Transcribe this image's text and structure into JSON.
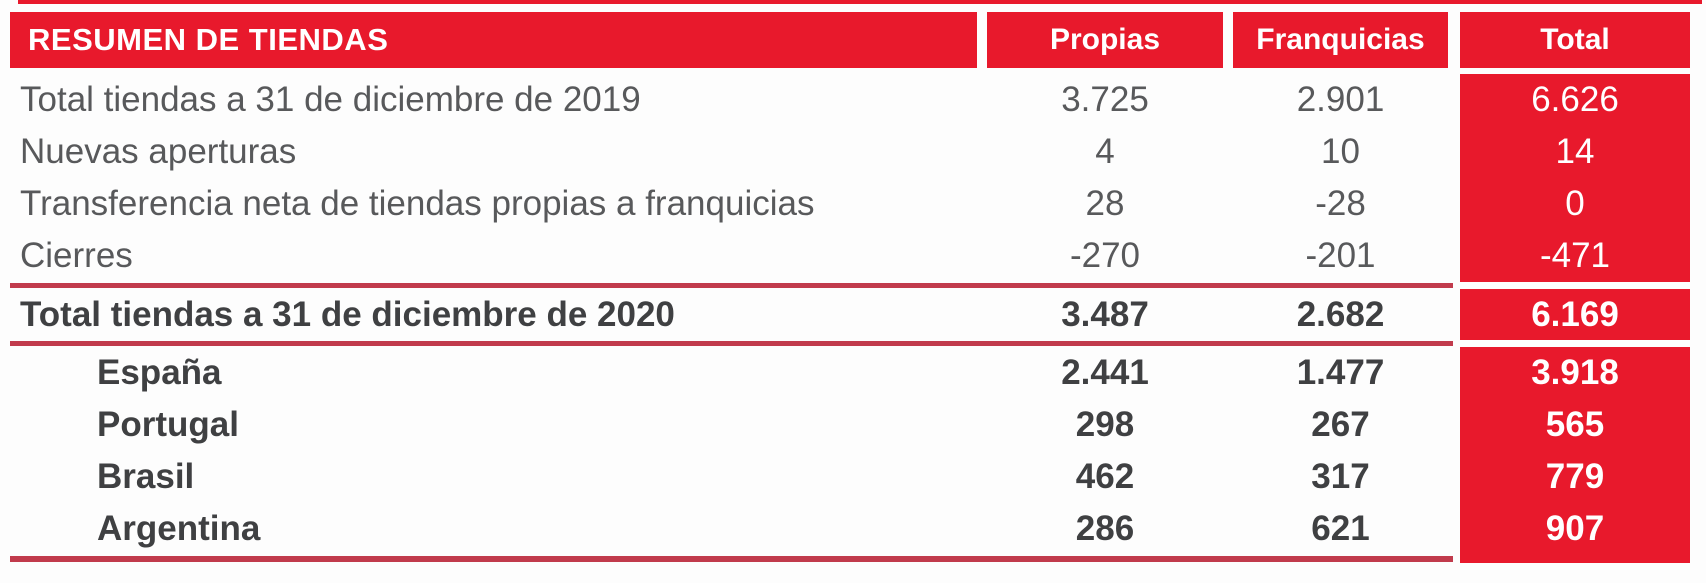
{
  "table": {
    "header": {
      "title": "RESUMEN DE TIENDAS",
      "col_propias": "Propias",
      "col_franquicias": "Franquicias",
      "col_total": "Total"
    },
    "movement_rows": [
      {
        "label": "Total tiendas a 31 de diciembre de 2019",
        "propias": "3.725",
        "franquicias": "2.901",
        "total": "6.626"
      },
      {
        "label": "Nuevas aperturas",
        "propias": "4",
        "franquicias": "10",
        "total": "14"
      },
      {
        "label": "Transferencia neta de tiendas propias a franquicias",
        "propias": "28",
        "franquicias": "-28",
        "total": "0"
      },
      {
        "label": "Cierres",
        "propias": "-270",
        "franquicias": "-201",
        "total": "-471"
      }
    ],
    "total_row": {
      "label": "Total tiendas a 31 de diciembre de 2020",
      "propias": "3.487",
      "franquicias": "2.682",
      "total": "6.169"
    },
    "country_rows": [
      {
        "label": "España",
        "propias": "2.441",
        "franquicias": "1.477",
        "total": "3.918"
      },
      {
        "label": "Portugal",
        "propias": "298",
        "franquicias": "267",
        "total": "565"
      },
      {
        "label": "Brasil",
        "propias": "462",
        "franquicias": "317",
        "total": "779"
      },
      {
        "label": "Argentina",
        "propias": "286",
        "franquicias": "621",
        "total": "907"
      }
    ],
    "colors": {
      "accent_red": "#E8192C",
      "line_red": "#C13B4C",
      "text_gray": "#58595B",
      "text_dark": "#3F4042"
    }
  }
}
